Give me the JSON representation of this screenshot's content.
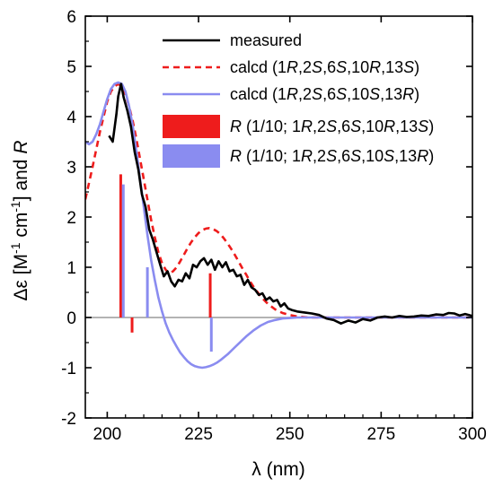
{
  "chart_data": {
    "type": "line",
    "xlabel": "λ (nm)",
    "ylabel": "Δε [M-1 cm-1] and R",
    "ylabel_parts": [
      "Δε [M",
      "-1",
      " cm",
      "-1",
      "] and ",
      "R"
    ],
    "xlim": [
      194,
      300
    ],
    "ylim": [
      -2,
      6
    ],
    "x_ticks": [
      200,
      225,
      250,
      275,
      300
    ],
    "y_ticks": [
      -2,
      -1,
      0,
      1,
      2,
      3,
      4,
      5,
      6
    ],
    "grid": false,
    "legend_position": "top-right",
    "baseline": 0,
    "series": [
      {
        "name": "measured",
        "legend_parts": [
          {
            "t": "measured",
            "i": false
          }
        ],
        "color": "#000000",
        "style": "solid",
        "x": [
          200.5,
          201.5,
          202.5,
          203.0,
          203.8,
          204.5,
          205.5,
          206.5,
          207.5,
          208.5,
          209.5,
          210.5,
          211.5,
          212.5,
          213.5,
          214.5,
          215.5,
          216.5,
          217.5,
          218.5,
          219.5,
          220.5,
          221.5,
          222.5,
          223.5,
          224.5,
          225.5,
          226.5,
          227.5,
          228.5,
          229.5,
          230.5,
          231.5,
          232.5,
          233.5,
          234.5,
          235.5,
          236.5,
          237.5,
          238.5,
          239.5,
          240.5,
          241.5,
          242.5,
          243.5,
          244.5,
          245.5,
          246.5,
          247.5,
          248.5,
          249.5,
          250.5,
          252,
          254,
          256,
          258,
          260,
          262,
          264,
          266,
          268,
          270,
          272,
          274,
          276,
          278,
          280,
          282,
          284,
          286,
          288,
          290,
          292,
          293.5,
          295,
          296.5,
          298,
          300
        ],
        "y": [
          3.62,
          3.5,
          4.05,
          4.4,
          4.65,
          4.38,
          4.12,
          3.8,
          3.3,
          2.95,
          2.45,
          2.2,
          1.75,
          1.55,
          1.3,
          1.05,
          0.82,
          0.92,
          0.72,
          0.62,
          0.75,
          0.72,
          0.88,
          0.78,
          1.05,
          1.0,
          1.12,
          1.18,
          1.05,
          1.15,
          0.95,
          1.12,
          1.0,
          1.1,
          0.92,
          0.95,
          0.82,
          0.85,
          0.65,
          0.75,
          0.6,
          0.55,
          0.45,
          0.48,
          0.35,
          0.4,
          0.32,
          0.35,
          0.22,
          0.28,
          0.18,
          0.15,
          0.12,
          0.1,
          0.08,
          0.05,
          -0.02,
          -0.05,
          -0.12,
          -0.06,
          -0.1,
          -0.03,
          -0.06,
          0.0,
          0.02,
          0.0,
          0.03,
          0.01,
          0.02,
          0.04,
          0.03,
          0.06,
          0.05,
          0.09,
          0.08,
          0.04,
          0.07,
          0.03
        ]
      },
      {
        "name": "calcd (1R,2S,6S,10R,13S)",
        "legend_parts": [
          {
            "t": "calcd (1",
            "i": false
          },
          {
            "t": "R",
            "i": true
          },
          {
            "t": ",2",
            "i": false
          },
          {
            "t": "S",
            "i": true
          },
          {
            "t": ",6",
            "i": false
          },
          {
            "t": "S",
            "i": true
          },
          {
            "t": ",10",
            "i": false
          },
          {
            "t": "R",
            "i": true
          },
          {
            "t": ",13",
            "i": false
          },
          {
            "t": "S",
            "i": true
          },
          {
            "t": ")",
            "i": false
          }
        ],
        "color": "#ee1c1c",
        "style": "dashed",
        "x": [
          194,
          196,
          198,
          200,
          201,
          202,
          203,
          204,
          205,
          206,
          207,
          208,
          209,
          210,
          211,
          212,
          213,
          214,
          215,
          216,
          217,
          218,
          219,
          220,
          221,
          222,
          223,
          224,
          225,
          226,
          227,
          228,
          229,
          230,
          231,
          232,
          233,
          234,
          235,
          236,
          237,
          238,
          239,
          240,
          242,
          244,
          246,
          248,
          250,
          252,
          255,
          260,
          265,
          270,
          280,
          290,
          300
        ],
        "y": [
          2.35,
          3.0,
          3.7,
          4.3,
          4.5,
          4.6,
          4.65,
          4.6,
          4.45,
          4.2,
          3.9,
          3.55,
          3.15,
          2.75,
          2.35,
          1.95,
          1.6,
          1.3,
          1.08,
          0.95,
          0.88,
          0.92,
          1.0,
          1.12,
          1.25,
          1.38,
          1.5,
          1.6,
          1.68,
          1.74,
          1.77,
          1.78,
          1.76,
          1.72,
          1.66,
          1.57,
          1.47,
          1.36,
          1.24,
          1.11,
          0.98,
          0.86,
          0.73,
          0.62,
          0.42,
          0.27,
          0.16,
          0.09,
          0.05,
          0.02,
          0.0,
          0.0,
          0.0,
          0.0,
          0.0,
          0.0,
          0.0
        ]
      },
      {
        "name": "calcd (1R,2S,6S,10S,13R)",
        "legend_parts": [
          {
            "t": "calcd (1",
            "i": false
          },
          {
            "t": "R",
            "i": true
          },
          {
            "t": ",2",
            "i": false
          },
          {
            "t": "S",
            "i": true
          },
          {
            "t": ",6",
            "i": false
          },
          {
            "t": "S",
            "i": true
          },
          {
            "t": ",10",
            "i": false
          },
          {
            "t": "S",
            "i": true
          },
          {
            "t": ",13",
            "i": false
          },
          {
            "t": "R",
            "i": true
          },
          {
            "t": ")",
            "i": false
          }
        ],
        "color": "#8a8cf0",
        "style": "solid",
        "x": [
          194,
          195,
          196,
          197,
          198,
          199,
          200,
          201,
          202,
          203,
          204,
          205,
          206,
          207,
          208,
          209,
          210,
          211,
          212,
          213,
          214,
          215,
          216,
          217,
          218,
          219,
          220,
          221,
          222,
          223,
          224,
          225,
          226,
          227,
          228,
          229,
          230,
          231,
          232,
          233,
          234,
          235,
          236,
          237,
          238,
          239,
          240,
          242,
          244,
          246,
          248,
          250,
          252,
          255,
          260,
          265,
          270,
          280,
          290,
          300
        ],
        "y": [
          3.5,
          3.45,
          3.5,
          3.65,
          3.85,
          4.1,
          4.35,
          4.55,
          4.65,
          4.68,
          4.65,
          4.5,
          4.2,
          3.8,
          3.3,
          2.75,
          2.2,
          1.65,
          1.15,
          0.75,
          0.4,
          0.12,
          -0.12,
          -0.3,
          -0.45,
          -0.58,
          -0.7,
          -0.79,
          -0.87,
          -0.93,
          -0.97,
          -0.99,
          -1.0,
          -0.99,
          -0.97,
          -0.94,
          -0.9,
          -0.85,
          -0.79,
          -0.73,
          -0.66,
          -0.59,
          -0.52,
          -0.45,
          -0.38,
          -0.32,
          -0.26,
          -0.16,
          -0.09,
          -0.05,
          -0.02,
          -0.01,
          0.0,
          0.0,
          0.0,
          0.0,
          0.0,
          0.0,
          0.0,
          0.0
        ]
      }
    ],
    "sticks": [
      {
        "name": "R (1/10; 1R,2S,6S,10R,13S)",
        "legend_parts": [
          {
            "t": "R",
            "i": true
          },
          {
            "t": " (1/10; 1",
            "i": false
          },
          {
            "t": "R",
            "i": true
          },
          {
            "t": ",2",
            "i": false
          },
          {
            "t": "S",
            "i": true
          },
          {
            "t": ",6",
            "i": false
          },
          {
            "t": "S",
            "i": true
          },
          {
            "t": ",10",
            "i": false
          },
          {
            "t": "R",
            "i": true
          },
          {
            "t": ",13",
            "i": false
          },
          {
            "t": "S",
            "i": true
          },
          {
            "t": ")",
            "i": false
          }
        ],
        "color": "#ee1c1c",
        "x": [
          203.7,
          206.8,
          228.2
        ],
        "y": [
          2.85,
          -0.3,
          0.88
        ]
      },
      {
        "name": "R (1/10; 1R,2S,6S,10S,13R)",
        "legend_parts": [
          {
            "t": "R",
            "i": true
          },
          {
            "t": " (1/10; 1",
            "i": false
          },
          {
            "t": "R",
            "i": true
          },
          {
            "t": ",2",
            "i": false
          },
          {
            "t": "S",
            "i": true
          },
          {
            "t": ",6",
            "i": false
          },
          {
            "t": "S",
            "i": true
          },
          {
            "t": ",10",
            "i": false
          },
          {
            "t": "S",
            "i": true
          },
          {
            "t": ",13",
            "i": false
          },
          {
            "t": "R",
            "i": true
          },
          {
            "t": ")",
            "i": false
          }
        ],
        "color": "#8a8cf0",
        "x": [
          204.4,
          211.0,
          228.5
        ],
        "y": [
          2.65,
          1.0,
          -0.68
        ]
      }
    ]
  }
}
